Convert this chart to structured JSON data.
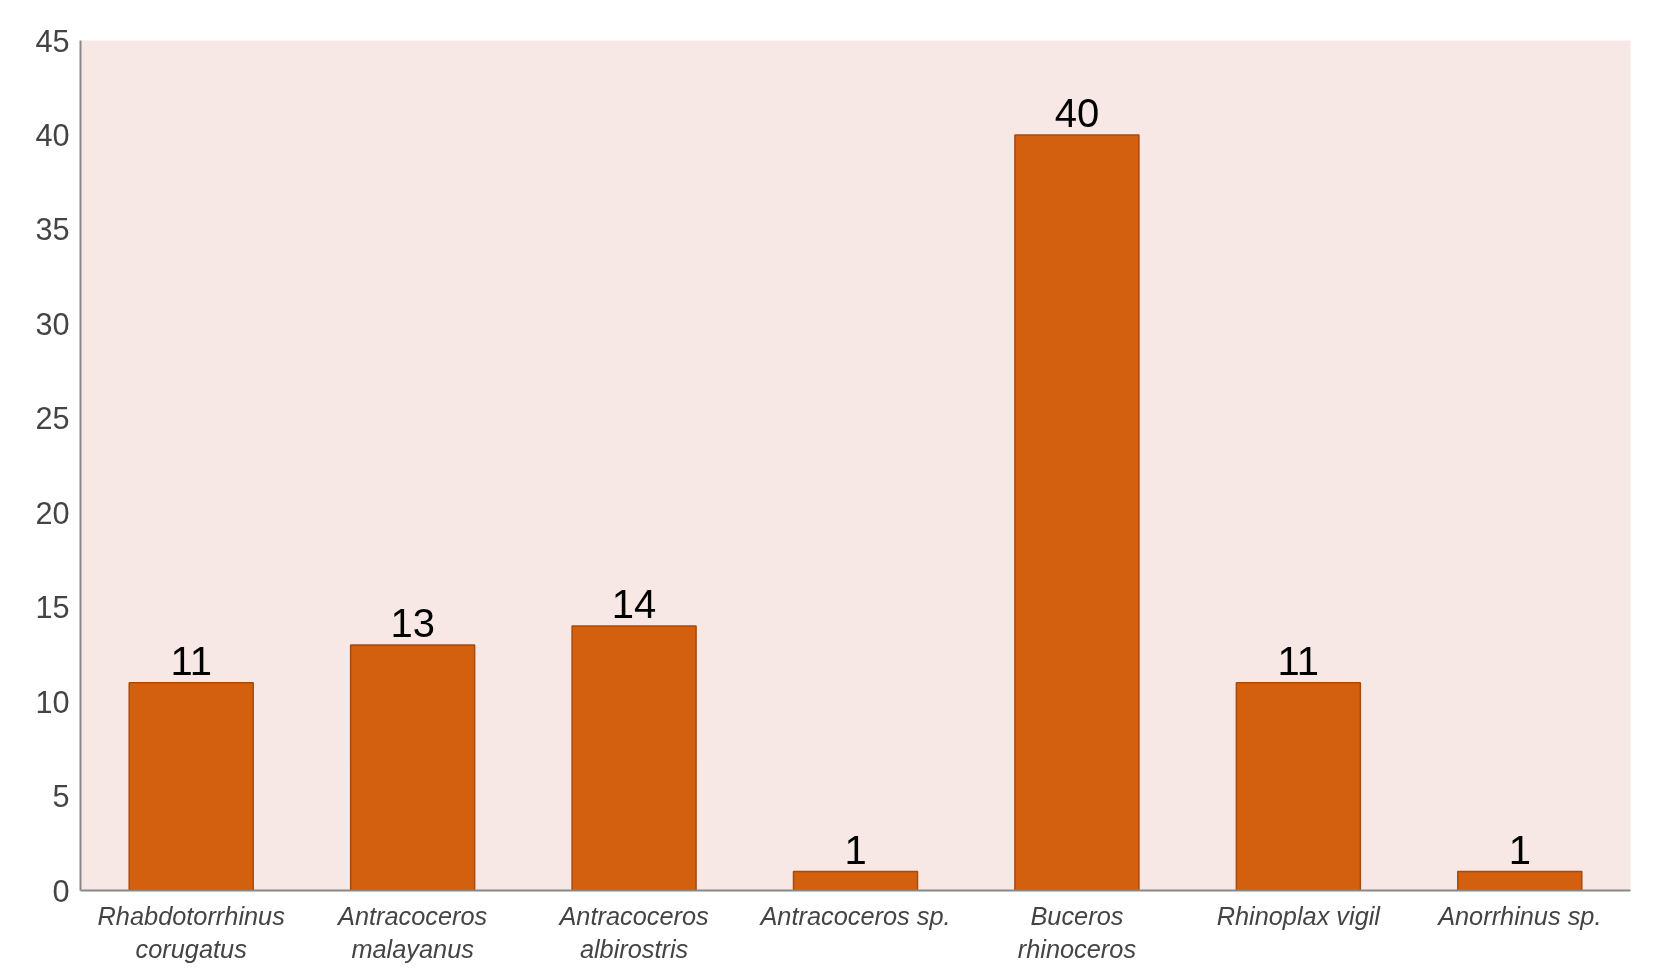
{
  "chart_data": {
    "type": "bar",
    "categories": [
      "Rhabdotorrhinus corugatus",
      "Antracoceros malayanus",
      "Antracoceros albirostris",
      "Antracoceros sp.",
      "Buceros rhinoceros",
      "Rhinoplax vigil",
      "Anorrhinus sp."
    ],
    "values": [
      11,
      13,
      14,
      1,
      40,
      11,
      1
    ],
    "color": "#d2600e",
    "ylim": [
      0,
      45
    ],
    "yticks": [
      0,
      5,
      10,
      15,
      20,
      25,
      30,
      35,
      40,
      45
    ],
    "grid": false,
    "data_labels": true
  }
}
